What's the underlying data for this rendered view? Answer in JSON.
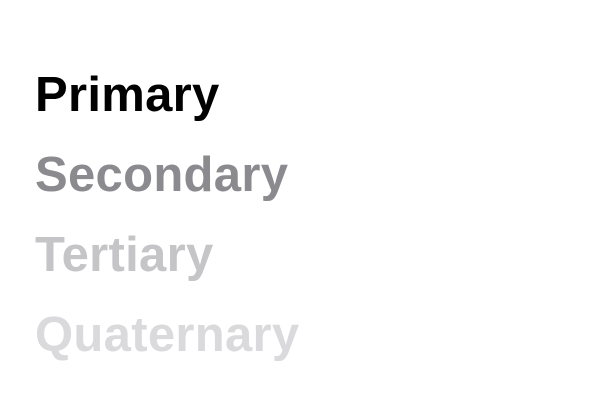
{
  "labels": {
    "primary": {
      "text": "Primary",
      "color": "#000000"
    },
    "secondary": {
      "text": "Secondary",
      "color": "#8a8a8f"
    },
    "tertiary": {
      "text": "Tertiary",
      "color": "#c5c5c8"
    },
    "quaternary": {
      "text": "Quaternary",
      "color": "#dadadc"
    }
  }
}
